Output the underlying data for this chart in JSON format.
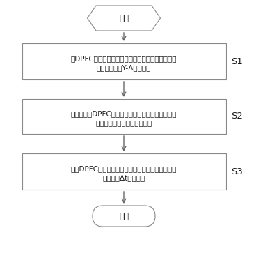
{
  "background_color": "#ffffff",
  "start_text": "开始",
  "end_text": "结束",
  "box1_line1": "将DPFC装置接入单机无穷大系统中，该单机无穷大",
  "box1_line2": "系统两端连接Y-Δ型变压器",
  "box2_line1": "分时段投切DPFC装置串联侧的变流器，每一时段投",
  "box2_line2": "切的变流器数目根据公式计算",
  "box3_line1": "关闭DPFC串联侧变流器停止工作时，串联侧变流器",
  "box3_line2": "均以滞后Δt依次关闭",
  "label1": "S1",
  "label2": "S2",
  "label3": "S3",
  "box_edge_color": "#888888",
  "box_face_color": "#ffffff",
  "arrow_color": "#666666",
  "text_color": "#1a1a1a",
  "font_size": 7.5,
  "label_font_size": 9.5
}
